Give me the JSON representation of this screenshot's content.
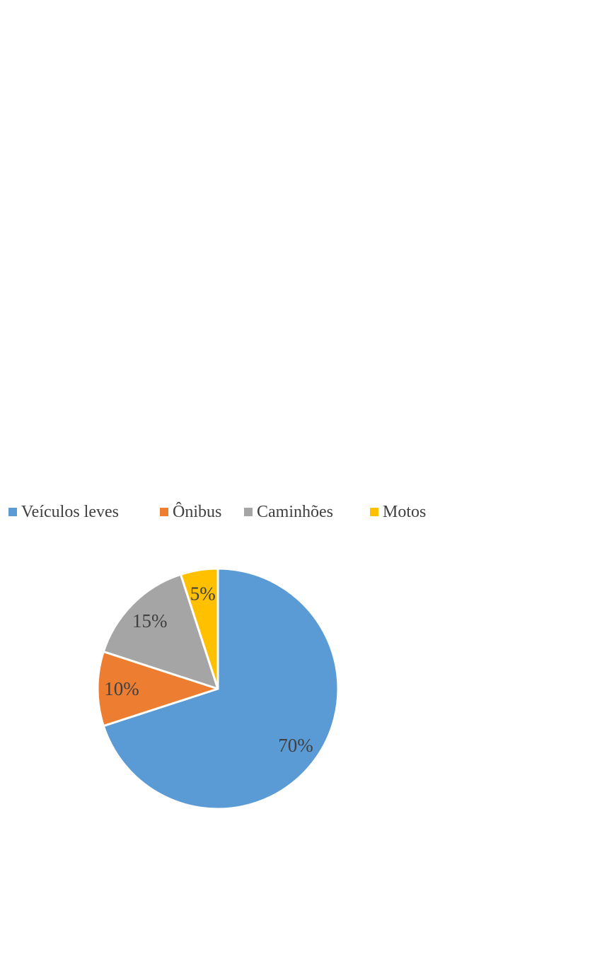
{
  "chart_data": {
    "type": "pie",
    "title": "",
    "legend_position": "top",
    "start_angle_deg": 0,
    "direction": "clockwise",
    "slices": [
      {
        "label": "Veículos leves",
        "value": 70,
        "percent_label": "70%",
        "color": "#5b9bd5"
      },
      {
        "label": "Ônibus",
        "value": 10,
        "percent_label": "10%",
        "color": "#ed7d31"
      },
      {
        "label": "Caminhões",
        "value": 15,
        "percent_label": "15%",
        "color": "#a5a5a5"
      },
      {
        "label": "Motos",
        "value": 5,
        "percent_label": "5%",
        "color": "#ffc000"
      }
    ],
    "label_color": "#404040",
    "slice_border_color": "#ffffff",
    "background": "#ffffff"
  }
}
